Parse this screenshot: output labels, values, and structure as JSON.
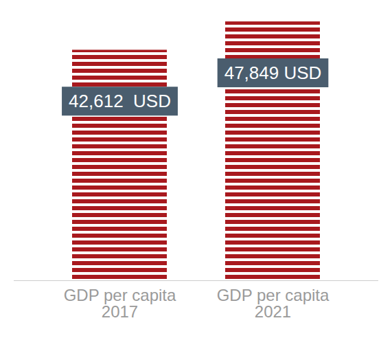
{
  "chart_data": {
    "type": "bar",
    "categories": [
      "GDP per capita 2017",
      "GDP per capita 2021"
    ],
    "values": [
      42612,
      47849
    ],
    "value_labels": [
      "42,612  USD",
      "47,849 USD"
    ],
    "color": "#a8191e",
    "data_labels": true,
    "tick_labels": "x",
    "ylim": [
      0,
      48000
    ],
    "yticks": []
  }
}
